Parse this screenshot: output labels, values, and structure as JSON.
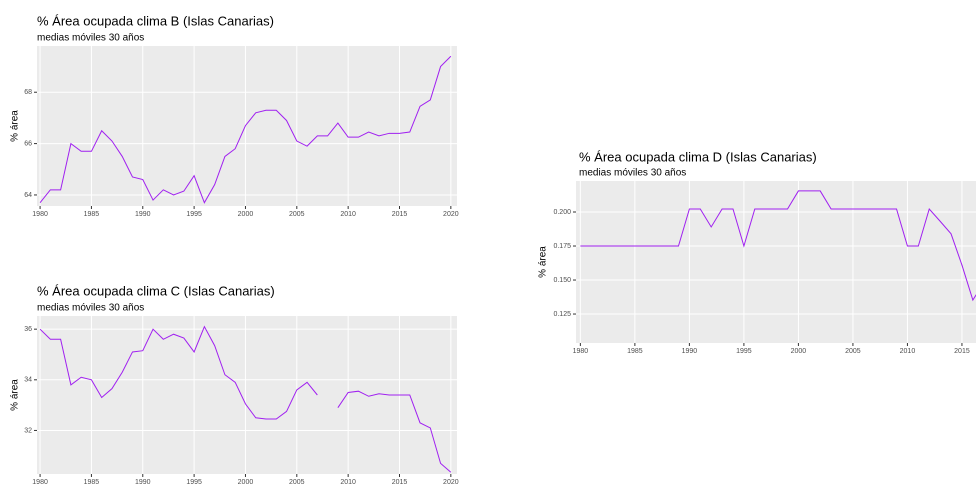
{
  "chart_data": [
    {
      "type": "line",
      "title": "% Área ocupada clima B  (Islas Canarias)",
      "subtitle": "medias móviles 30 años",
      "y_label": "% área",
      "x": [
        1980,
        1981,
        1982,
        1983,
        1984,
        1985,
        1986,
        1987,
        1988,
        1989,
        1990,
        1991,
        1992,
        1993,
        1994,
        1995,
        1996,
        1997,
        1998,
        1999,
        2000,
        2001,
        2002,
        2003,
        2004,
        2005,
        2006,
        2007,
        2008,
        2009,
        2010,
        2011,
        2012,
        2013,
        2014,
        2015,
        2016,
        2017,
        2018,
        2019,
        2020
      ],
      "values": [
        63.7,
        64.2,
        64.2,
        66.0,
        65.7,
        65.7,
        66.5,
        66.1,
        65.5,
        64.7,
        64.6,
        63.8,
        64.2,
        64.0,
        64.15,
        64.75,
        63.7,
        64.4,
        65.5,
        65.8,
        66.7,
        67.2,
        67.3,
        67.3,
        66.9,
        66.1,
        65.9,
        66.3,
        66.3,
        66.8,
        66.25,
        66.25,
        66.45,
        66.3,
        66.4,
        66.4,
        66.45,
        67.45,
        67.7,
        69.0,
        69.4
      ],
      "color": "#a020f0",
      "xlim": [
        1979.7,
        2020.6
      ],
      "xticks": [
        1980,
        1985,
        1990,
        1995,
        2000,
        2005,
        2010,
        2015,
        2020
      ],
      "ylim": [
        63.57,
        69.8
      ],
      "yticks": [
        64,
        66,
        68
      ],
      "grid": true
    },
    {
      "type": "line",
      "title": "% Área ocupada clima C  (Islas Canarias)",
      "subtitle": "medias móviles 30 años",
      "y_label": "% área",
      "x": [
        1980,
        1981,
        1982,
        1983,
        1984,
        1985,
        1986,
        1987,
        1988,
        1989,
        1990,
        1991,
        1992,
        1993,
        1994,
        1995,
        1996,
        1997,
        1998,
        1999,
        2000,
        2001,
        2002,
        2003,
        2004,
        2005,
        2006,
        2007,
        2008,
        2009,
        2010,
        2011,
        2012,
        2013,
        2014,
        2015,
        2016,
        2017,
        2018,
        2019,
        2020
      ],
      "values": [
        36.0,
        35.6,
        35.6,
        33.8,
        34.1,
        34.0,
        33.3,
        33.65,
        34.3,
        35.1,
        35.15,
        36.0,
        35.6,
        35.8,
        35.65,
        35.1,
        36.1,
        35.35,
        34.2,
        33.9,
        33.05,
        32.5,
        32.45,
        32.45,
        32.75,
        33.6,
        33.9,
        33.4,
        null,
        32.9,
        33.5,
        33.55,
        33.35,
        33.45,
        33.4,
        33.4,
        33.4,
        32.3,
        32.1,
        30.7,
        30.35
      ],
      "color": "#a020f0",
      "xlim": [
        1979.7,
        2020.6
      ],
      "xticks": [
        1980,
        1985,
        1990,
        1995,
        2000,
        2005,
        2010,
        2015,
        2020
      ],
      "ylim": [
        30.28,
        36.52
      ],
      "yticks": [
        32,
        34,
        36
      ],
      "grid": true
    },
    {
      "type": "line",
      "title": "% Área ocupada clima D  (Islas Canarias)",
      "subtitle": "medias móviles 30 años",
      "y_label": "% área",
      "x": [
        1980,
        1981,
        1982,
        1983,
        1984,
        1985,
        1986,
        1987,
        1988,
        1989,
        1990,
        1991,
        1992,
        1993,
        1994,
        1995,
        1996,
        1997,
        1998,
        1999,
        2000,
        2001,
        2002,
        2003,
        2004,
        2005,
        2006,
        2007,
        2008,
        2009,
        2010,
        2011,
        2012,
        2013,
        2014,
        2015,
        2016,
        2017,
        2018,
        2019,
        2020
      ],
      "values": [
        0.175,
        0.175,
        0.175,
        0.175,
        0.175,
        0.175,
        0.175,
        0.175,
        0.175,
        0.175,
        0.2022,
        0.2022,
        0.189,
        0.2022,
        0.2022,
        0.175,
        0.2022,
        0.2022,
        0.2022,
        0.2022,
        0.2155,
        0.2155,
        0.2155,
        0.2022,
        0.2022,
        0.2022,
        0.2022,
        0.2022,
        0.2022,
        0.2022,
        0.175,
        0.175,
        0.2022,
        0.1932,
        0.184,
        0.161,
        0.1353,
        0.148,
        0.136,
        0.136,
        0.1155
      ],
      "color": "#a020f0",
      "xlim": [
        1979.6,
        2020.6
      ],
      "xticks": [
        1980,
        1985,
        1990,
        1995,
        2000,
        2005,
        2010,
        2015,
        2020
      ],
      "ylim": [
        0.1037,
        0.2228
      ],
      "yticks": [
        {
          "value": 0.125,
          "label": "0.125"
        },
        {
          "value": 0.15,
          "label": "0.150"
        },
        {
          "value": 0.175,
          "label": "0.175"
        },
        {
          "value": 0.2,
          "label": "0.200"
        }
      ],
      "grid": true
    }
  ]
}
